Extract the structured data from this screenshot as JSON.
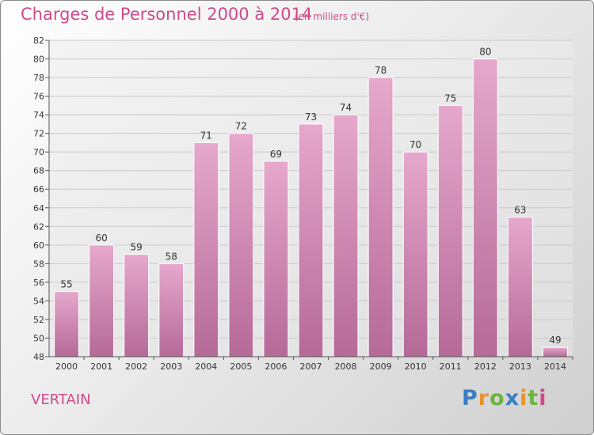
{
  "chart_data": {
    "type": "bar",
    "title": "Charges de Personnel 2000 à 2014",
    "subtitle": "(en milliers d'€)",
    "categories": [
      "2000",
      "2001",
      "2002",
      "2003",
      "2004",
      "2005",
      "2006",
      "2007",
      "2008",
      "2009",
      "2010",
      "2011",
      "2012",
      "2013",
      "2014"
    ],
    "values": [
      55,
      60,
      59,
      58,
      71,
      72,
      69,
      73,
      74,
      78,
      70,
      75,
      80,
      63,
      49
    ],
    "ylim": [
      48,
      82
    ],
    "yticks": [
      48,
      50,
      52,
      54,
      56,
      58,
      60,
      62,
      64,
      66,
      68,
      70,
      72,
      74,
      76,
      78,
      80,
      82
    ],
    "grid": true,
    "bar_color": "#d98ab8"
  },
  "footer": {
    "commune": "VERTAIN",
    "logo_text": "Proxiti"
  }
}
